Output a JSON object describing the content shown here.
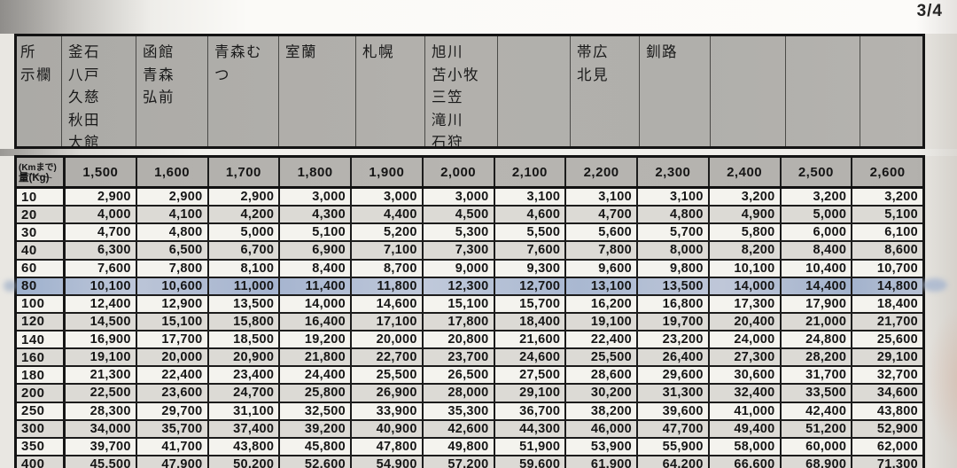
{
  "page": {
    "number_label": "3/4"
  },
  "destination_header": {
    "corner_label": "所\n示欄",
    "columns": [
      "釜石\n八戸\n久慈\n秋田\n大館",
      "函館\n青森\n弘前",
      "青森むつ",
      "室蘭",
      "札幌",
      "旭川\n苫小牧\n三笠\n滝川\n石狩",
      "",
      "帯広\n北見",
      "釧路",
      "",
      "",
      ""
    ]
  },
  "rate_table": {
    "corner_top": "(Kmまで)",
    "corner_bottom": "量(Kg)",
    "distances": [
      "1,500",
      "1,600",
      "1,700",
      "1,800",
      "1,900",
      "2,000",
      "2,100",
      "2,200",
      "2,300",
      "2,400",
      "2,500",
      "2,600"
    ],
    "rows": [
      {
        "weight": "10",
        "highlight": false,
        "values": [
          "2,900",
          "2,900",
          "2,900",
          "3,000",
          "3,000",
          "3,000",
          "3,100",
          "3,100",
          "3,100",
          "3,200",
          "3,200",
          "3,200"
        ]
      },
      {
        "weight": "20",
        "highlight": false,
        "values": [
          "4,000",
          "4,100",
          "4,200",
          "4,300",
          "4,400",
          "4,500",
          "4,600",
          "4,700",
          "4,800",
          "4,900",
          "5,000",
          "5,100"
        ]
      },
      {
        "weight": "30",
        "highlight": false,
        "values": [
          "4,700",
          "4,800",
          "5,000",
          "5,100",
          "5,200",
          "5,300",
          "5,500",
          "5,600",
          "5,700",
          "5,800",
          "6,000",
          "6,100"
        ]
      },
      {
        "weight": "40",
        "highlight": false,
        "values": [
          "6,300",
          "6,500",
          "6,700",
          "6,900",
          "7,100",
          "7,300",
          "7,600",
          "7,800",
          "8,000",
          "8,200",
          "8,400",
          "8,600"
        ]
      },
      {
        "weight": "60",
        "highlight": false,
        "values": [
          "7,600",
          "7,800",
          "8,100",
          "8,400",
          "8,700",
          "9,000",
          "9,300",
          "9,600",
          "9,800",
          "10,100",
          "10,400",
          "10,700"
        ]
      },
      {
        "weight": "80",
        "highlight": true,
        "values": [
          "10,100",
          "10,600",
          "11,000",
          "11,400",
          "11,800",
          "12,300",
          "12,700",
          "13,100",
          "13,500",
          "14,000",
          "14,400",
          "14,800"
        ]
      },
      {
        "weight": "100",
        "highlight": false,
        "values": [
          "12,400",
          "12,900",
          "13,500",
          "14,000",
          "14,600",
          "15,100",
          "15,700",
          "16,200",
          "16,800",
          "17,300",
          "17,900",
          "18,400"
        ]
      },
      {
        "weight": "120",
        "highlight": false,
        "values": [
          "14,500",
          "15,100",
          "15,800",
          "16,400",
          "17,100",
          "17,800",
          "18,400",
          "19,100",
          "19,700",
          "20,400",
          "21,000",
          "21,700"
        ]
      },
      {
        "weight": "140",
        "highlight": false,
        "values": [
          "16,900",
          "17,700",
          "18,500",
          "19,200",
          "20,000",
          "20,800",
          "21,600",
          "22,400",
          "23,200",
          "24,000",
          "24,800",
          "25,600"
        ]
      },
      {
        "weight": "160",
        "highlight": false,
        "values": [
          "19,100",
          "20,000",
          "20,900",
          "21,800",
          "22,700",
          "23,700",
          "24,600",
          "25,500",
          "26,400",
          "27,300",
          "28,200",
          "29,100"
        ]
      },
      {
        "weight": "180",
        "highlight": false,
        "values": [
          "21,300",
          "22,400",
          "23,400",
          "24,400",
          "25,500",
          "26,500",
          "27,500",
          "28,600",
          "29,600",
          "30,600",
          "31,700",
          "32,700"
        ]
      },
      {
        "weight": "200",
        "highlight": false,
        "values": [
          "22,500",
          "23,600",
          "24,700",
          "25,800",
          "26,900",
          "28,000",
          "29,100",
          "30,200",
          "31,300",
          "32,400",
          "33,500",
          "34,600"
        ]
      },
      {
        "weight": "250",
        "highlight": false,
        "values": [
          "28,300",
          "29,700",
          "31,100",
          "32,500",
          "33,900",
          "35,300",
          "36,700",
          "38,200",
          "39,600",
          "41,000",
          "42,400",
          "43,800"
        ]
      },
      {
        "weight": "300",
        "highlight": false,
        "values": [
          "34,000",
          "35,700",
          "37,400",
          "39,200",
          "40,900",
          "42,600",
          "44,300",
          "46,000",
          "47,700",
          "49,400",
          "51,200",
          "52,900"
        ]
      },
      {
        "weight": "350",
        "highlight": false,
        "values": [
          "39,700",
          "41,700",
          "43,800",
          "45,800",
          "47,800",
          "49,800",
          "51,900",
          "53,900",
          "55,900",
          "58,000",
          "60,000",
          "62,000"
        ]
      },
      {
        "weight": "400",
        "highlight": false,
        "values": [
          "45,500",
          "47,900",
          "50,200",
          "52,600",
          "54,900",
          "57,200",
          "59,600",
          "61,900",
          "64,200",
          "66,600",
          "68,900",
          "71,300"
        ]
      }
    ]
  },
  "colors": {
    "highlight_blue": "#aab7cf",
    "header_gray": "#b2b0ac",
    "row_shaded": "#dcdad5",
    "row_light": "#f4f3ee",
    "page_edge_dark": "#1f1f1f"
  }
}
